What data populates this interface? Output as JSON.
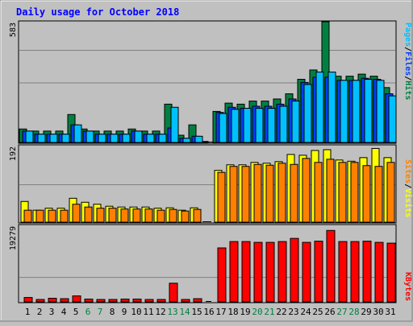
{
  "title": "Daily usage for October 2018",
  "colors": {
    "hits": "#008040",
    "files": "#0040ff",
    "pages": "#00c0ff",
    "visits": "#ffff00",
    "sites": "#ff8000",
    "kbytes": "#ff0000",
    "weekend_label": "#008040",
    "weekday_label": "#000000",
    "title": "#0000ff"
  },
  "chart_data": [
    {
      "type": "bar",
      "panel": "top",
      "categories": [
        "1",
        "2",
        "3",
        "4",
        "5",
        "6",
        "7",
        "8",
        "9",
        "10",
        "11",
        "12",
        "13",
        "14",
        "15",
        "16",
        "17",
        "18",
        "19",
        "20",
        "21",
        "22",
        "23",
        "24",
        "25",
        "26",
        "27",
        "28",
        "29",
        "30",
        "31"
      ],
      "weekend_days": [
        "6",
        "7",
        "13",
        "14",
        "20",
        "21",
        "27",
        "28"
      ],
      "y_max_label": "583",
      "ylim": [
        0,
        583
      ],
      "legend": [
        "Pages",
        "Files",
        "Hits"
      ],
      "series": [
        {
          "name": "Hits",
          "values": [
            65,
            55,
            55,
            55,
            135,
            65,
            55,
            55,
            55,
            65,
            55,
            55,
            185,
            35,
            85,
            5,
            150,
            190,
            185,
            200,
            200,
            210,
            235,
            305,
            350,
            583,
            320,
            320,
            330,
            320,
            265
          ]
        },
        {
          "name": "Files",
          "values": [
            55,
            40,
            40,
            40,
            85,
            55,
            40,
            40,
            40,
            55,
            40,
            40,
            70,
            20,
            30,
            0,
            145,
            170,
            165,
            175,
            175,
            185,
            210,
            290,
            315,
            315,
            300,
            300,
            310,
            305,
            235
          ]
        },
        {
          "name": "Pages",
          "values": [
            55,
            40,
            40,
            40,
            85,
            55,
            40,
            40,
            40,
            55,
            40,
            40,
            170,
            20,
            30,
            0,
            140,
            160,
            165,
            165,
            165,
            175,
            200,
            280,
            340,
            340,
            300,
            300,
            305,
            300,
            225
          ]
        }
      ]
    },
    {
      "type": "bar",
      "panel": "middle",
      "categories": [
        "1",
        "2",
        "3",
        "4",
        "5",
        "6",
        "7",
        "8",
        "9",
        "10",
        "11",
        "12",
        "13",
        "14",
        "15",
        "16",
        "17",
        "18",
        "19",
        "20",
        "21",
        "22",
        "23",
        "24",
        "25",
        "26",
        "27",
        "28",
        "29",
        "30",
        "31"
      ],
      "y_max_label": "192",
      "ylim": [
        0,
        192
      ],
      "legend": [
        "Sites",
        "Visits"
      ],
      "series": [
        {
          "name": "Visits",
          "values": [
            52,
            30,
            35,
            35,
            60,
            50,
            45,
            40,
            38,
            38,
            38,
            35,
            36,
            30,
            36,
            0,
            130,
            144,
            144,
            150,
            148,
            152,
            170,
            168,
            180,
            182,
            156,
            153,
            162,
            185,
            162
          ]
        },
        {
          "name": "Sites",
          "values": [
            30,
            30,
            30,
            30,
            45,
            38,
            35,
            35,
            33,
            33,
            33,
            30,
            32,
            28,
            32,
            0,
            125,
            140,
            140,
            145,
            143,
            148,
            145,
            160,
            150,
            158,
            150,
            150,
            142,
            140,
            150
          ]
        }
      ]
    },
    {
      "type": "bar",
      "panel": "bottom",
      "categories": [
        "1",
        "2",
        "3",
        "4",
        "5",
        "6",
        "7",
        "8",
        "9",
        "10",
        "11",
        "12",
        "13",
        "14",
        "15",
        "16",
        "17",
        "18",
        "19",
        "20",
        "21",
        "22",
        "23",
        "24",
        "25",
        "26",
        "27",
        "28",
        "29",
        "30",
        "31"
      ],
      "y_max_label": "19279",
      "ylim": [
        0,
        19279
      ],
      "legend": [
        "KBytes"
      ],
      "series": [
        {
          "name": "KBytes",
          "values": [
            1100,
            600,
            900,
            800,
            1500,
            700,
            600,
            600,
            700,
            700,
            600,
            600,
            4700,
            600,
            800,
            0,
            13600,
            15200,
            15200,
            15000,
            15000,
            15200,
            16000,
            15000,
            15300,
            18000,
            15200,
            15200,
            15300,
            15000,
            14800
          ]
        }
      ]
    }
  ]
}
